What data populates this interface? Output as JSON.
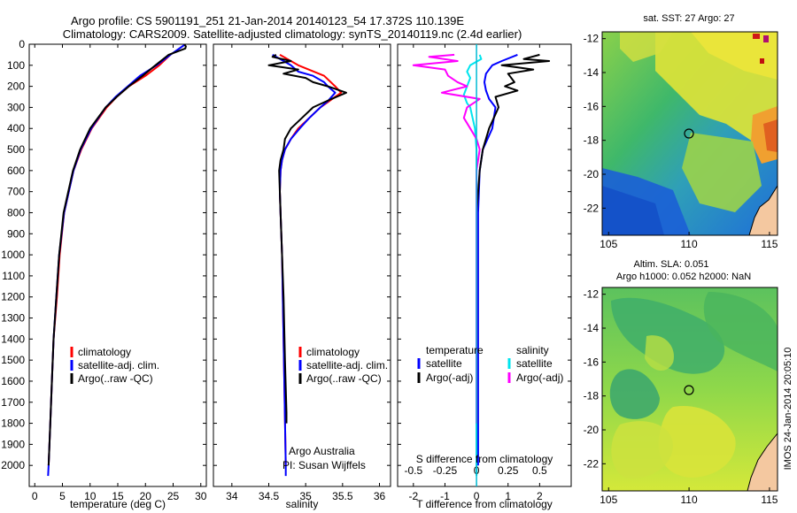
{
  "title": {
    "line1": "Argo profile: CS 5901191_251 21-Jan-2014 20140123_54 17.372S 110.139E",
    "line2": "Climatology: CARS2009. Satellite-adjusted climatology: synTS_20140119.nc (2.4d earlier)"
  },
  "colors": {
    "climatology": "#ff0000",
    "satellite": "#0000ff",
    "argo": "#000000",
    "sal_satellite": "#00e5ee",
    "sal_argo": "#ff00ff"
  },
  "depth_axis": {
    "ylim": [
      0,
      2100
    ],
    "ticks": [
      0,
      100,
      200,
      300,
      400,
      500,
      600,
      700,
      800,
      900,
      1000,
      1100,
      1200,
      1300,
      1400,
      1500,
      1600,
      1700,
      1800,
      1900,
      2000
    ]
  },
  "chart_data": [
    {
      "id": "temperature",
      "type": "line",
      "xlabel": "temperature (deg C)",
      "xlim": [
        -1,
        31
      ],
      "xticks": [
        0,
        5,
        10,
        15,
        20,
        25,
        30
      ],
      "legend": [
        "climatology",
        "satellite-adj. clim.",
        "Argo(..raw -QC)"
      ],
      "series": [
        {
          "name": "climatology",
          "color_key": "climatology",
          "depth": [
            50,
            100,
            150,
            200,
            250,
            300,
            400,
            500,
            600,
            800,
            1000,
            1200,
            1400,
            1600,
            1800,
            2000
          ],
          "values": [
            24.5,
            22.5,
            20,
            17,
            14.8,
            13,
            10.3,
            8.4,
            7,
            5.3,
            4.5,
            4,
            3.4,
            3.1,
            2.8,
            2.5
          ]
        },
        {
          "name": "satellite",
          "color_key": "satellite",
          "depth": [
            0,
            50,
            100,
            150,
            200,
            250,
            300,
            400,
            500,
            600,
            800,
            1000,
            1200,
            1400,
            1600,
            1800,
            2000,
            2050
          ],
          "values": [
            27.2,
            24.5,
            22,
            19,
            16.8,
            14.6,
            12.8,
            10.2,
            8.3,
            7,
            5.3,
            4.4,
            3.9,
            3.4,
            3.1,
            2.8,
            2.5,
            2.4
          ]
        },
        {
          "name": "Argo",
          "color_key": "argo",
          "depth": [
            0,
            10,
            20,
            50,
            100,
            150,
            200,
            250,
            300,
            400,
            500,
            600,
            800,
            1000,
            1200,
            1400,
            1600,
            1800,
            2000
          ],
          "values": [
            27,
            27.3,
            27.2,
            24.2,
            21.8,
            19.5,
            17,
            14.8,
            12.8,
            10,
            8.2,
            6.9,
            5.2,
            4.4,
            3.9,
            3.4,
            3.1,
            2.8,
            2.5
          ]
        }
      ]
    },
    {
      "id": "salinity",
      "type": "line",
      "xlabel": "salinity",
      "xlim": [
        33.75,
        36.15
      ],
      "xticks": [
        34,
        34.5,
        35,
        35.5,
        36
      ],
      "legend": [
        "climatology",
        "satellite-adj. clim.",
        "Argo(..raw -QC)"
      ],
      "annotation": [
        "Argo Australia",
        "PI: Susan Wijffels"
      ],
      "series": [
        {
          "name": "climatology",
          "color_key": "climatology",
          "depth": [
            50,
            100,
            150,
            200,
            230,
            250,
            300,
            350,
            400,
            450,
            500,
            550,
            600,
            700,
            800,
            1000,
            1400,
            2000
          ],
          "values": [
            34.65,
            34.9,
            35.25,
            35.4,
            35.48,
            35.4,
            35.2,
            35.05,
            34.9,
            34.8,
            34.72,
            34.68,
            34.66,
            34.65,
            34.66,
            34.68,
            34.7,
            34.73
          ]
        },
        {
          "name": "satellite",
          "color_key": "satellite",
          "depth": [
            50,
            80,
            100,
            130,
            150,
            180,
            200,
            230,
            270,
            300,
            350,
            400,
            450,
            500,
            550,
            600,
            700,
            800,
            1000,
            1400,
            2000,
            2050
          ],
          "values": [
            34.55,
            34.7,
            34.8,
            34.9,
            35.1,
            35.25,
            35.3,
            35.4,
            35.3,
            35.2,
            35.05,
            34.92,
            34.8,
            34.72,
            34.68,
            34.66,
            34.65,
            34.66,
            34.68,
            34.7,
            34.73,
            34.73
          ]
        },
        {
          "name": "Argo",
          "color_key": "argo",
          "depth": [
            50,
            60,
            80,
            100,
            120,
            140,
            160,
            180,
            200,
            230,
            260,
            300,
            350,
            400,
            450,
            500,
            550,
            600,
            700,
            800,
            1000,
            1200,
            1500,
            1750,
            1800
          ],
          "values": [
            34.6,
            34.55,
            34.8,
            34.5,
            34.9,
            34.7,
            35.0,
            35.1,
            35.3,
            35.55,
            35.35,
            35.1,
            34.95,
            34.8,
            34.72,
            34.7,
            34.66,
            34.64,
            34.65,
            34.66,
            34.68,
            34.7,
            34.72,
            34.74,
            34.74
          ]
        }
      ]
    },
    {
      "id": "differences",
      "type": "line",
      "xlabel_top": "S difference from climatology",
      "xlabel": "T difference from climatology",
      "xlim": [
        -2.5,
        3
      ],
      "xticks": [
        -2,
        -1,
        0,
        1,
        2
      ],
      "xticks_top_labels": [
        "-0.5",
        "-0.25",
        "0",
        "0.25",
        "0.5"
      ],
      "xticks_top_positions": [
        -2,
        -1,
        0,
        1,
        2
      ],
      "legend_temperature": {
        "title": "temperature",
        "items": [
          "satellite",
          "Argo(-adj)"
        ]
      },
      "legend_salinity": {
        "title": "salinity",
        "items": [
          "satellite",
          "Argo(-adj)"
        ]
      },
      "series": [
        {
          "name": "T satellite",
          "color_key": "satellite",
          "depth": [
            50,
            80,
            100,
            140,
            180,
            220,
            260,
            300,
            400,
            500,
            600,
            800,
            1000,
            1500,
            2000
          ],
          "values": [
            1.3,
            0.8,
            0.5,
            0.3,
            0.25,
            0.3,
            0.4,
            0.6,
            0.5,
            0.2,
            0.1,
            0.05,
            0.05,
            0.05,
            0.05
          ]
        },
        {
          "name": "T Argo",
          "color_key": "argo",
          "depth": [
            50,
            70,
            80,
            100,
            120,
            140,
            180,
            200,
            220,
            250,
            300,
            400,
            500,
            600,
            800,
            1000,
            1500,
            1750,
            1800
          ],
          "values": [
            2.0,
            1.5,
            2.3,
            0.8,
            1.8,
            1.0,
            1.2,
            0.9,
            1.3,
            0.6,
            0.7,
            0.4,
            0.2,
            0.1,
            0.0,
            0.0,
            0.0,
            0.0,
            0.0
          ]
        },
        {
          "name": "S satellite",
          "color_key": "sal_satellite",
          "depth": [
            50,
            70,
            100,
            130,
            160,
            200,
            240,
            280,
            300,
            400,
            500,
            700,
            1000,
            1500,
            2000,
            2050
          ],
          "values": [
            0.1,
            0.15,
            -0.2,
            -0.3,
            -0.2,
            -0.3,
            -0.4,
            -0.3,
            -0.2,
            -0.05,
            0.0,
            0.0,
            0.0,
            0.0,
            0.0,
            0.0
          ]
        },
        {
          "name": "S Argo",
          "color_key": "sal_argo",
          "depth": [
            50,
            60,
            80,
            100,
            120,
            150,
            180,
            200,
            230,
            260,
            300,
            350,
            400,
            450,
            500,
            600,
            800,
            1000,
            1500,
            1800
          ],
          "values": [
            -0.7,
            -1.5,
            -0.6,
            -2.0,
            -1.0,
            -0.9,
            -0.6,
            -0.3,
            -1.1,
            0.1,
            -0.3,
            -0.4,
            -0.2,
            0.0,
            0.1,
            0.0,
            0.0,
            0.0,
            0.0,
            0.0
          ]
        }
      ]
    }
  ],
  "map_sst": {
    "title": "sat. SST: 27 Argo: 27",
    "xticks": [
      "105",
      "110",
      "115"
    ],
    "yticks": [
      "-12",
      "-14",
      "-16",
      "-18",
      "-20",
      "-22"
    ],
    "marker": {
      "lon": 110.139,
      "lat": -17.372
    }
  },
  "map_sla": {
    "title1": "Altim. SLA: 0.051",
    "title2": "Argo h1000: 0.052 h2000: NaN",
    "xticks": [
      "105",
      "110",
      "115"
    ],
    "yticks": [
      "-12",
      "-14",
      "-16",
      "-18",
      "-20",
      "-22"
    ],
    "marker": {
      "lon": 110.139,
      "lat": -17.372
    }
  },
  "watermark": "IMOS 24-Jan-2014 20:05:10"
}
